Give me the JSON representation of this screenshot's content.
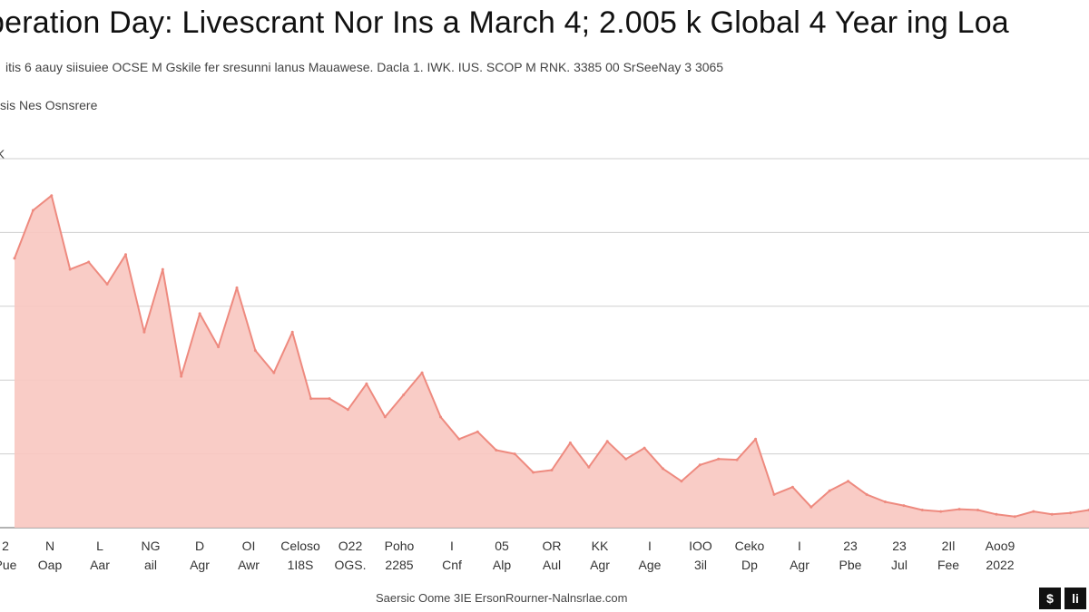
{
  "header": {
    "title": "peration Day: Livescrant Nor Ins a March 4; 2.005 k Global 4 Year ing Loa",
    "subtitle": "itis 6 aauy siisuiee OCSE M Gskile fer sresunni lanus Mauawese. Dacla 1. IWK. IUS. SCOP M RNK. 3385 00 SrSeeNay 3 3065",
    "series_label": "sis Nes Osnsrere",
    "unit_label": "K"
  },
  "footer": {
    "source": "Saersic Oome 3IE ErsonRourner-Nalnsrlae.com",
    "logos": [
      "$",
      "li"
    ]
  },
  "colors": {
    "line": "#ee8a7f",
    "fill": "#f8c6c0",
    "grid": "#cfcfcf"
  },
  "chart_data": {
    "type": "area",
    "title": "peration Day: Livescrant Nor Ins a March 4; 2.005 k Global 4 Year ing Loa",
    "ylabel": "K",
    "ylim": [
      0,
      5
    ],
    "grid": true,
    "x_ticks": [
      {
        "top": "2",
        "bottom": "Pue"
      },
      {
        "top": "N",
        "bottom": "Oap"
      },
      {
        "top": "L",
        "bottom": "Aar"
      },
      {
        "top": "NG",
        "bottom": "ail"
      },
      {
        "top": "D",
        "bottom": "Agr"
      },
      {
        "top": "OI",
        "bottom": "Awr"
      },
      {
        "top": "Celoso",
        "bottom": "1I8S"
      },
      {
        "top": "O22",
        "bottom": "OGS."
      },
      {
        "top": "Poho",
        "bottom": "2285"
      },
      {
        "top": "I",
        "bottom": "Cnf"
      },
      {
        "top": "05",
        "bottom": "Alp"
      },
      {
        "top": "OR",
        "bottom": "Aul"
      },
      {
        "top": "KK",
        "bottom": "Agr"
      },
      {
        "top": "I",
        "bottom": "Age"
      },
      {
        "top": "IOO",
        "bottom": "3il"
      },
      {
        "top": "Ceko",
        "bottom": "Dp"
      },
      {
        "top": "I",
        "bottom": "Agr"
      },
      {
        "top": "23",
        "bottom": "Pbe"
      },
      {
        "top": "23",
        "bottom": "Jul"
      },
      {
        "top": "2Il",
        "bottom": "Fee"
      },
      {
        "top": "Aoo9",
        "bottom": "2022"
      }
    ],
    "x": [
      0,
      1,
      2,
      3,
      4,
      5,
      6,
      7,
      8,
      9,
      10,
      11,
      12,
      13,
      14,
      15,
      16,
      17,
      18,
      19,
      20,
      21,
      22,
      23,
      24,
      25,
      26,
      27,
      28,
      29,
      30,
      31,
      32,
      33,
      34,
      35,
      36,
      37,
      38,
      39,
      40,
      41,
      42,
      43,
      44,
      45,
      46,
      47,
      48,
      49,
      50,
      51,
      52,
      53,
      54,
      55,
      56,
      57,
      58
    ],
    "series": [
      {
        "values": [
          3.65,
          4.3,
          4.5,
          3.5,
          3.6,
          3.3,
          3.7,
          2.65,
          3.5,
          2.05,
          2.9,
          2.45,
          3.25,
          2.4,
          2.1,
          2.65,
          1.75,
          1.75,
          1.6,
          1.95,
          1.5,
          1.8,
          2.1,
          1.5,
          1.2,
          1.3,
          1.05,
          1.0,
          0.75,
          0.78,
          1.15,
          0.82,
          1.17,
          0.93,
          1.08,
          0.8,
          0.63,
          0.85,
          0.93,
          0.92,
          1.2,
          0.45,
          0.55,
          0.28,
          0.5,
          0.63,
          0.45,
          0.35,
          0.3,
          0.24,
          0.22,
          0.25,
          0.24,
          0.18,
          0.15,
          0.22,
          0.18,
          0.2,
          0.24
        ]
      }
    ]
  }
}
